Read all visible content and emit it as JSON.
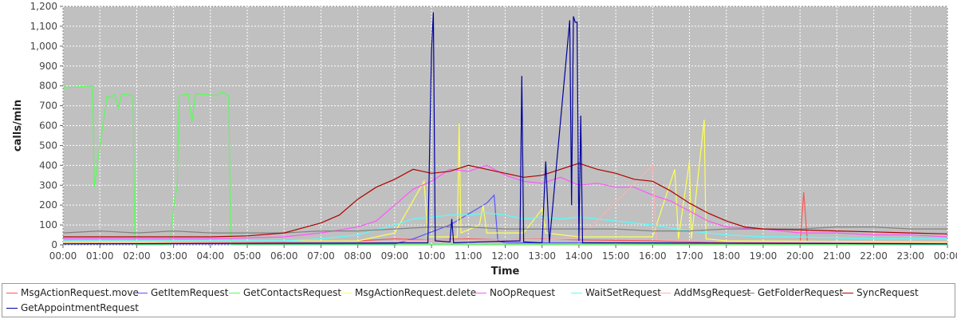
{
  "chart_data": {
    "type": "line",
    "title": "",
    "xlabel": "Time",
    "ylabel": "calls/min",
    "ylim": [
      0,
      1200
    ],
    "yticks": [
      0,
      100,
      200,
      300,
      400,
      500,
      600,
      700,
      800,
      900,
      1000,
      1100,
      1200
    ],
    "ytick_labels": [
      "0",
      "100",
      "200",
      "300",
      "400",
      "500",
      "600",
      "700",
      "800",
      "900",
      "1,000",
      "1,100",
      "1,200"
    ],
    "xlim": [
      0,
      24
    ],
    "xtick_labels": [
      "00:00",
      "01:00",
      "02:00",
      "03:00",
      "04:00",
      "05:00",
      "06:00",
      "07:00",
      "08:00",
      "09:00",
      "10:00",
      "11:00",
      "12:00",
      "13:00",
      "14:00",
      "15:00",
      "16:00",
      "17:00",
      "18:00",
      "19:00",
      "20:00",
      "21:00",
      "22:00",
      "23:00",
      "00:00"
    ],
    "grid": true,
    "legend_position": "bottom",
    "series": [
      {
        "name": "MsgActionRequest.move",
        "color": "#ff5555",
        "points": [
          [
            0,
            20
          ],
          [
            3,
            15
          ],
          [
            6,
            15
          ],
          [
            8,
            20
          ],
          [
            9,
            30
          ],
          [
            10,
            25
          ],
          [
            11,
            30
          ],
          [
            12,
            25
          ],
          [
            13,
            30
          ],
          [
            14,
            25
          ],
          [
            16,
            20
          ],
          [
            18,
            10
          ],
          [
            20,
            10
          ],
          [
            20.1,
            265
          ],
          [
            20.2,
            15
          ],
          [
            22,
            10
          ],
          [
            24,
            10
          ]
        ]
      },
      {
        "name": "GetItemRequest",
        "color": "#5555ff",
        "points": [
          [
            0,
            5
          ],
          [
            9,
            5
          ],
          [
            9.5,
            30
          ],
          [
            10.5,
            100
          ],
          [
            11.5,
            210
          ],
          [
            11.7,
            250
          ],
          [
            11.8,
            20
          ],
          [
            12,
            10
          ],
          [
            14,
            10
          ],
          [
            24,
            5
          ]
        ]
      },
      {
        "name": "GetContactsRequest",
        "color": "#55ff55",
        "points": [
          [
            0,
            810
          ],
          [
            0.05,
            790
          ],
          [
            0.8,
            800
          ],
          [
            0.85,
            290
          ],
          [
            1.0,
            500
          ],
          [
            1.2,
            750
          ],
          [
            1.3,
            740
          ],
          [
            1.4,
            760
          ],
          [
            1.5,
            690
          ],
          [
            1.6,
            760
          ],
          [
            1.9,
            750
          ],
          [
            1.95,
            0
          ],
          [
            2.9,
            0
          ],
          [
            3.0,
            180
          ],
          [
            3.05,
            250
          ],
          [
            3.1,
            290
          ],
          [
            3.15,
            750
          ],
          [
            3.4,
            760
          ],
          [
            3.5,
            620
          ],
          [
            3.6,
            760
          ],
          [
            4.2,
            750
          ],
          [
            4.3,
            770
          ],
          [
            4.5,
            750
          ],
          [
            4.55,
            0
          ],
          [
            24,
            0
          ]
        ]
      },
      {
        "name": "MsgActionRequest.delete",
        "color": "#ffff55",
        "points": [
          [
            0,
            15
          ],
          [
            8,
            20
          ],
          [
            9,
            60
          ],
          [
            9.8,
            320
          ],
          [
            9.9,
            40
          ],
          [
            10.7,
            40
          ],
          [
            10.75,
            610
          ],
          [
            10.8,
            60
          ],
          [
            11.3,
            100
          ],
          [
            11.4,
            200
          ],
          [
            11.5,
            60
          ],
          [
            12.5,
            60
          ],
          [
            13,
            180
          ],
          [
            13.1,
            60
          ],
          [
            14,
            40
          ],
          [
            16,
            40
          ],
          [
            16.6,
            380
          ],
          [
            16.7,
            30
          ],
          [
            17,
            420
          ],
          [
            17.05,
            30
          ],
          [
            17.4,
            630
          ],
          [
            17.45,
            30
          ],
          [
            18,
            20
          ],
          [
            24,
            15
          ]
        ]
      },
      {
        "name": "NoOpRequest",
        "color": "#ff55ff",
        "points": [
          [
            0,
            30
          ],
          [
            2,
            30
          ],
          [
            4,
            30
          ],
          [
            6,
            40
          ],
          [
            7,
            60
          ],
          [
            8,
            90
          ],
          [
            8.5,
            120
          ],
          [
            9,
            200
          ],
          [
            9.5,
            280
          ],
          [
            10,
            320
          ],
          [
            10.5,
            380
          ],
          [
            11,
            370
          ],
          [
            11.5,
            400
          ],
          [
            12,
            350
          ],
          [
            12.5,
            320
          ],
          [
            13,
            310
          ],
          [
            13.5,
            340
          ],
          [
            14,
            300
          ],
          [
            14.5,
            310
          ],
          [
            15,
            290
          ],
          [
            15.5,
            290
          ],
          [
            16,
            250
          ],
          [
            16.5,
            220
          ],
          [
            17,
            170
          ],
          [
            17.5,
            120
          ],
          [
            18,
            90
          ],
          [
            19,
            80
          ],
          [
            20,
            60
          ],
          [
            21,
            60
          ],
          [
            22,
            50
          ],
          [
            23,
            50
          ],
          [
            24,
            40
          ]
        ]
      },
      {
        "name": "WaitSetRequest",
        "color": "#55ffff",
        "points": [
          [
            0,
            20
          ],
          [
            6,
            20
          ],
          [
            7,
            30
          ],
          [
            8,
            50
          ],
          [
            9,
            100
          ],
          [
            9.5,
            130
          ],
          [
            10,
            140
          ],
          [
            10.5,
            150
          ],
          [
            11,
            150
          ],
          [
            11.5,
            160
          ],
          [
            12,
            150
          ],
          [
            12.5,
            130
          ],
          [
            13,
            140
          ],
          [
            13.5,
            130
          ],
          [
            14,
            140
          ],
          [
            14.5,
            130
          ],
          [
            15,
            120
          ],
          [
            15.5,
            110
          ],
          [
            16,
            100
          ],
          [
            17,
            70
          ],
          [
            18,
            50
          ],
          [
            19,
            40
          ],
          [
            20,
            40
          ],
          [
            22,
            30
          ],
          [
            24,
            30
          ]
        ]
      },
      {
        "name": "AddMsgRequest",
        "color": "#ffafaf",
        "points": [
          [
            0,
            10
          ],
          [
            8,
            10
          ],
          [
            9,
            20
          ],
          [
            10,
            25
          ],
          [
            12,
            25
          ],
          [
            14,
            30
          ],
          [
            16,
            400
          ],
          [
            16.1,
            25
          ],
          [
            18,
            15
          ],
          [
            24,
            10
          ]
        ]
      },
      {
        "name": "GetFolderRequest",
        "color": "#808080",
        "points": [
          [
            0,
            60
          ],
          [
            1,
            70
          ],
          [
            2,
            60
          ],
          [
            3,
            70
          ],
          [
            4,
            60
          ],
          [
            5,
            60
          ],
          [
            6,
            60
          ],
          [
            7,
            70
          ],
          [
            8,
            70
          ],
          [
            9,
            80
          ],
          [
            10,
            90
          ],
          [
            11,
            90
          ],
          [
            12,
            80
          ],
          [
            13,
            80
          ],
          [
            14,
            80
          ],
          [
            15,
            80
          ],
          [
            16,
            70
          ],
          [
            17,
            70
          ],
          [
            18,
            80
          ],
          [
            19,
            80
          ],
          [
            20,
            80
          ],
          [
            21,
            90
          ],
          [
            22,
            90
          ],
          [
            23,
            80
          ],
          [
            24,
            80
          ]
        ]
      },
      {
        "name": "SyncRequest",
        "color": "#b00000",
        "points": [
          [
            0,
            40
          ],
          [
            2,
            40
          ],
          [
            4,
            40
          ],
          [
            5,
            45
          ],
          [
            6,
            60
          ],
          [
            7,
            110
          ],
          [
            7.5,
            150
          ],
          [
            8,
            230
          ],
          [
            8.5,
            290
          ],
          [
            9,
            330
          ],
          [
            9.5,
            380
          ],
          [
            10,
            360
          ],
          [
            10.5,
            370
          ],
          [
            11,
            400
          ],
          [
            11.5,
            380
          ],
          [
            12,
            360
          ],
          [
            12.5,
            340
          ],
          [
            13,
            350
          ],
          [
            13.5,
            380
          ],
          [
            14,
            410
          ],
          [
            14.5,
            380
          ],
          [
            15,
            360
          ],
          [
            15.5,
            330
          ],
          [
            16,
            320
          ],
          [
            16.5,
            270
          ],
          [
            17,
            210
          ],
          [
            17.5,
            160
          ],
          [
            18,
            120
          ],
          [
            18.5,
            90
          ],
          [
            19,
            80
          ],
          [
            20,
            75
          ],
          [
            21,
            70
          ],
          [
            22,
            65
          ],
          [
            23,
            60
          ],
          [
            24,
            55
          ]
        ]
      },
      {
        "name": "GetAppointmentRequest",
        "color": "#0000a0",
        "points": [
          [
            0,
            5
          ],
          [
            9.9,
            10
          ],
          [
            10,
            980
          ],
          [
            10.05,
            1170
          ],
          [
            10.1,
            20
          ],
          [
            10.5,
            15
          ],
          [
            10.55,
            130
          ],
          [
            10.6,
            10
          ],
          [
            11.3,
            15
          ],
          [
            12.4,
            20
          ],
          [
            12.45,
            850
          ],
          [
            12.5,
            15
          ],
          [
            13,
            10
          ],
          [
            13.1,
            420
          ],
          [
            13.2,
            10
          ],
          [
            13.75,
            1130
          ],
          [
            13.8,
            200
          ],
          [
            13.85,
            1150
          ],
          [
            13.9,
            1120
          ],
          [
            13.95,
            1120
          ],
          [
            14,
            20
          ],
          [
            14.05,
            650
          ],
          [
            14.1,
            10
          ],
          [
            15,
            10
          ],
          [
            24,
            5
          ]
        ]
      }
    ]
  }
}
